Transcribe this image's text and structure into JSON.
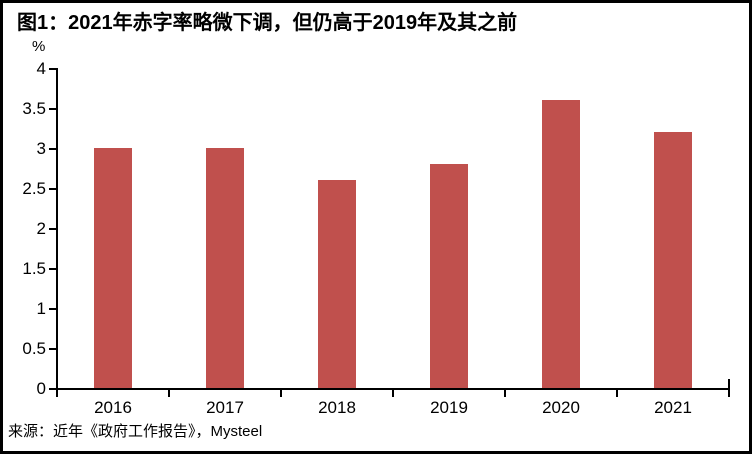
{
  "chart_data": {
    "type": "bar",
    "title": "图1：2021年赤字率略微下调，但仍高于2019年及其之前",
    "unit_label": "%",
    "categories": [
      "2016",
      "2017",
      "2018",
      "2019",
      "2020",
      "2021"
    ],
    "values": [
      3.0,
      3.0,
      2.6,
      2.8,
      3.6,
      3.2
    ],
    "series_name": "赤字率",
    "xlabel": "",
    "ylabel": "%",
    "ylim": [
      0,
      4
    ],
    "ytick_step": 0.5,
    "yticks": [
      0,
      0.5,
      1,
      1.5,
      2,
      2.5,
      3,
      3.5,
      4
    ],
    "ytick_labels": [
      "0",
      "0.5",
      "1",
      "1.5",
      "2",
      "2.5",
      "3",
      "3.5",
      "4"
    ],
    "grid": false,
    "legend_position": "none",
    "bar_color": "#C0504D",
    "axis_color": "#000000",
    "text_color": "#000000",
    "background_color": "#FFFFFF",
    "border_color": "#000000"
  },
  "source": {
    "text": "来源：近年《政府工作报告》，Mysteel"
  }
}
